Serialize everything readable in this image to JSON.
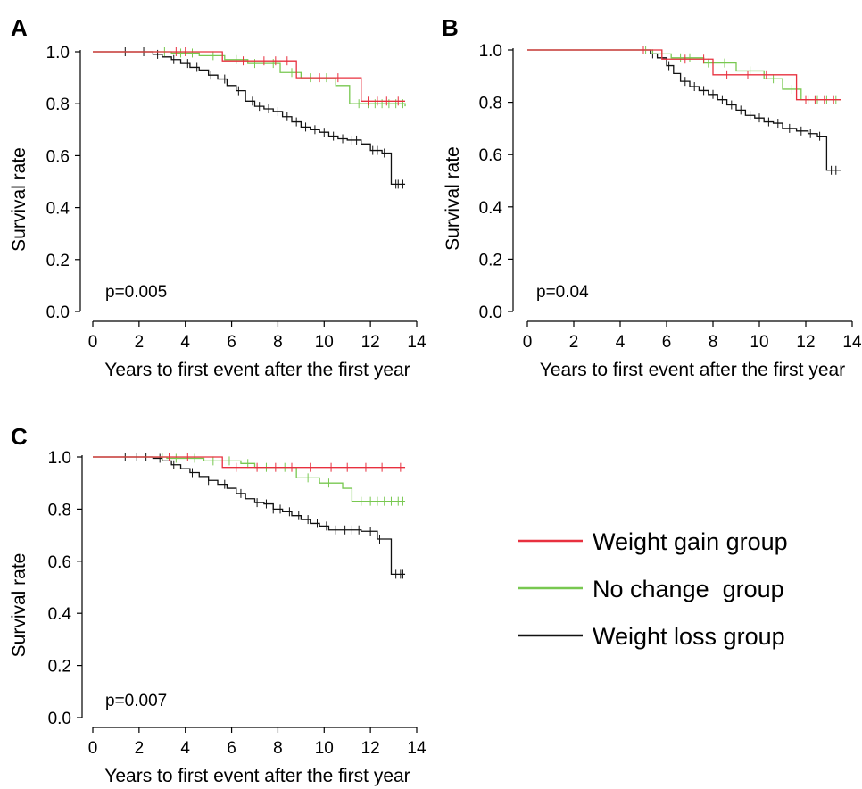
{
  "legend": {
    "items": [
      {
        "label": "Weight gain group",
        "color": "#e8303f"
      },
      {
        "label": "No change  group",
        "color": "#78c850"
      },
      {
        "label": "Weight loss group",
        "color": "#111111"
      }
    ]
  },
  "chart_data": [
    {
      "panel_label": "A",
      "type": "line",
      "kaplan_meier": true,
      "xlabel": "Years to first event after the first year",
      "ylabel": "Survival rate",
      "annotation": "p=0.005",
      "xlim": [
        0,
        14
      ],
      "ylim": [
        0,
        1.0
      ],
      "xticks": [
        "0",
        "2",
        "4",
        "6",
        "8",
        "10",
        "12",
        "14"
      ],
      "yticks": [
        "0.0",
        "0.2",
        "0.4",
        "0.6",
        "0.8",
        "1.0"
      ],
      "series": [
        {
          "name": "Weight gain group",
          "color": "#e8303f",
          "x": [
            0,
            5.6,
            8.8,
            11.6,
            13.5
          ],
          "y": [
            1.0,
            0.965,
            0.9,
            0.81,
            0.81
          ],
          "censor_x": [
            3.6,
            4.0,
            6.5,
            7.4,
            7.9,
            8.4,
            9.8,
            10.6,
            11.9,
            12.3,
            12.7,
            13.2
          ]
        },
        {
          "name": "No change  group",
          "color": "#78c850",
          "x": [
            0,
            3.4,
            4.6,
            5.7,
            6.7,
            8.1,
            9.0,
            10.5,
            11.1,
            13.5
          ],
          "y": [
            1.0,
            0.995,
            0.985,
            0.97,
            0.955,
            0.92,
            0.9,
            0.87,
            0.8,
            0.79
          ],
          "censor_x": [
            3.1,
            3.8,
            4.3,
            5.2,
            6.2,
            7.0,
            7.8,
            8.6,
            9.4,
            10.1,
            11.5,
            11.9,
            12.2,
            12.5,
            12.8,
            13.1,
            13.4
          ]
        },
        {
          "name": "Weight loss group",
          "color": "#111111",
          "x": [
            0,
            2.6,
            3.0,
            3.4,
            3.8,
            4.2,
            4.6,
            5.0,
            5.4,
            5.8,
            6.2,
            6.6,
            7.0,
            7.4,
            7.8,
            8.2,
            8.6,
            9.0,
            9.4,
            9.8,
            10.2,
            10.6,
            11.0,
            11.6,
            12.0,
            12.5,
            12.9,
            13.5
          ],
          "y": [
            1.0,
            0.99,
            0.98,
            0.97,
            0.955,
            0.94,
            0.93,
            0.91,
            0.895,
            0.87,
            0.85,
            0.81,
            0.79,
            0.78,
            0.77,
            0.75,
            0.73,
            0.71,
            0.7,
            0.69,
            0.675,
            0.665,
            0.66,
            0.645,
            0.62,
            0.61,
            0.49,
            0.49
          ],
          "censor_x": [
            1.4,
            2.2,
            2.8,
            3.5,
            4.1,
            4.5,
            5.1,
            5.7,
            6.3,
            6.9,
            7.2,
            7.6,
            8.0,
            8.4,
            8.8,
            9.2,
            9.6,
            10.0,
            10.4,
            10.8,
            11.2,
            11.4,
            12.1,
            12.3,
            12.6,
            13.1,
            13.2,
            13.4
          ]
        }
      ]
    },
    {
      "panel_label": "B",
      "type": "line",
      "kaplan_meier": true,
      "xlabel": "Years to first event after the first year",
      "ylabel": "Survival rate",
      "annotation": "p=0.04",
      "xlim": [
        0,
        14
      ],
      "ylim": [
        0,
        1.0
      ],
      "xticks": [
        "0",
        "2",
        "4",
        "6",
        "8",
        "10",
        "12",
        "14"
      ],
      "yticks": [
        "0.0",
        "0.2",
        "0.4",
        "0.6",
        "0.8",
        "1.0"
      ],
      "series": [
        {
          "name": "Weight gain group",
          "color": "#e8303f",
          "x": [
            0,
            5.8,
            8.0,
            11.6,
            13.5
          ],
          "y": [
            1.0,
            0.965,
            0.905,
            0.81,
            0.81
          ],
          "censor_x": [
            5.0,
            6.8,
            7.6,
            8.6,
            9.5,
            10.3,
            12.0,
            12.4,
            12.8,
            13.2
          ]
        },
        {
          "name": "No change  group",
          "color": "#78c850",
          "x": [
            0,
            5.4,
            6.2,
            7.6,
            9.0,
            10.2,
            11.0,
            11.8,
            13.5
          ],
          "y": [
            1.0,
            0.985,
            0.97,
            0.95,
            0.92,
            0.89,
            0.85,
            0.81,
            0.81
          ],
          "censor_x": [
            5.1,
            5.8,
            6.6,
            7.0,
            7.8,
            8.5,
            9.6,
            10.6,
            11.4,
            12.1,
            12.5,
            12.9,
            13.3
          ]
        },
        {
          "name": "Weight loss group",
          "color": "#111111",
          "x": [
            0,
            5.3,
            5.6,
            6.0,
            6.3,
            6.6,
            7.0,
            7.4,
            7.8,
            8.2,
            8.6,
            9.0,
            9.4,
            9.8,
            10.2,
            10.6,
            11.0,
            11.6,
            12.1,
            12.5,
            12.9,
            13.5
          ],
          "y": [
            1.0,
            0.985,
            0.97,
            0.94,
            0.91,
            0.88,
            0.86,
            0.845,
            0.83,
            0.81,
            0.79,
            0.77,
            0.75,
            0.74,
            0.725,
            0.72,
            0.7,
            0.69,
            0.68,
            0.67,
            0.54,
            0.54
          ],
          "censor_x": [
            5.0,
            5.4,
            6.1,
            6.8,
            7.2,
            7.6,
            8.0,
            8.4,
            8.8,
            9.2,
            9.6,
            10.0,
            10.4,
            10.8,
            11.3,
            11.8,
            12.2,
            12.6,
            13.1,
            13.3
          ]
        }
      ]
    },
    {
      "panel_label": "C",
      "type": "line",
      "kaplan_meier": true,
      "xlabel": "Years to first event after the first year",
      "ylabel": "Survival rate",
      "annotation": "p=0.007",
      "xlim": [
        0,
        14
      ],
      "ylim": [
        0,
        1.0
      ],
      "xticks": [
        "0",
        "2",
        "4",
        "6",
        "8",
        "10",
        "12",
        "14"
      ],
      "yticks": [
        "0.0",
        "0.2",
        "0.4",
        "0.6",
        "0.8",
        "1.0"
      ],
      "series": [
        {
          "name": "Weight gain group",
          "color": "#e8303f",
          "x": [
            0,
            5.6,
            13.5
          ],
          "y": [
            1.0,
            0.96,
            0.96
          ],
          "censor_x": [
            3.3,
            4.1,
            6.2,
            7.1,
            7.9,
            8.6,
            9.4,
            10.3,
            11.0,
            11.8,
            12.5,
            13.3
          ]
        },
        {
          "name": "No change  group",
          "color": "#78c850",
          "x": [
            0,
            3.2,
            4.8,
            6.4,
            7.0,
            8.8,
            9.8,
            10.8,
            11.2,
            13.5
          ],
          "y": [
            1.0,
            0.995,
            0.985,
            0.975,
            0.96,
            0.92,
            0.9,
            0.88,
            0.83,
            0.83
          ],
          "censor_x": [
            3.0,
            3.6,
            4.4,
            5.2,
            5.9,
            6.7,
            7.5,
            8.3,
            9.3,
            10.2,
            11.6,
            12.0,
            12.3,
            12.6,
            12.9,
            13.2,
            13.4
          ]
        },
        {
          "name": "Weight loss group",
          "color": "#111111",
          "x": [
            0,
            2.6,
            3.0,
            3.4,
            3.8,
            4.2,
            4.6,
            5.0,
            5.4,
            5.8,
            6.2,
            6.6,
            7.0,
            7.4,
            7.8,
            8.2,
            8.6,
            9.0,
            9.4,
            9.8,
            10.2,
            10.6,
            11.6,
            12.3,
            12.9,
            13.5
          ],
          "y": [
            1.0,
            0.995,
            0.985,
            0.97,
            0.955,
            0.94,
            0.925,
            0.91,
            0.895,
            0.88,
            0.86,
            0.84,
            0.825,
            0.82,
            0.8,
            0.79,
            0.775,
            0.76,
            0.745,
            0.735,
            0.72,
            0.72,
            0.715,
            0.685,
            0.55,
            0.55
          ],
          "censor_x": [
            1.4,
            1.9,
            2.3,
            2.9,
            3.5,
            4.3,
            5.0,
            5.7,
            6.4,
            7.1,
            7.5,
            7.8,
            8.1,
            8.5,
            8.9,
            9.3,
            9.7,
            10.1,
            10.5,
            10.9,
            11.2,
            11.5,
            12.0,
            12.4,
            13.1,
            13.3,
            13.4
          ]
        }
      ]
    }
  ]
}
